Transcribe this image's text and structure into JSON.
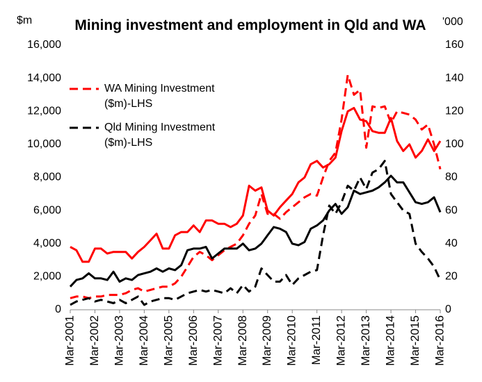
{
  "chart_data": {
    "type": "line",
    "title": "Mining investment and employment in Qld and WA",
    "ylabel": "$m",
    "y2label": "'000",
    "categories": [
      "Mar-2001",
      null,
      null,
      null,
      "Mar-2002",
      null,
      null,
      null,
      "Mar-2003",
      null,
      null,
      null,
      "Mar-2004",
      null,
      null,
      null,
      "Mar-2005",
      null,
      null,
      null,
      "Mar-2006",
      null,
      null,
      null,
      "Mar-2007",
      null,
      null,
      null,
      "Mar-2008",
      null,
      null,
      null,
      "Mar-2009",
      null,
      null,
      null,
      "Mar-2010",
      null,
      null,
      null,
      "Mar-2011",
      null,
      null,
      null,
      "Mar-2012",
      null,
      null,
      null,
      "Mar-2013",
      null,
      null,
      null,
      "Mar-2014",
      null,
      null,
      null,
      "Mar-2015",
      null,
      null,
      null,
      "Mar-2016"
    ],
    "series": [
      {
        "name": "WA Mining Investment ($m)-LHS",
        "color": "#ff0000",
        "dashed": true,
        "values": [
          700,
          800,
          800,
          700,
          800,
          800,
          900,
          900,
          900,
          1000,
          1200,
          1300,
          1100,
          1200,
          1300,
          1400,
          1400,
          1600,
          2000,
          2600,
          3200,
          3500,
          3300,
          3000,
          3300,
          3600,
          3800,
          4000,
          4500,
          5200,
          5700,
          7000,
          5800,
          5800,
          5500,
          5900,
          6200,
          6500,
          6800,
          7000,
          6900,
          8000,
          9000,
          9500,
          11500,
          14200,
          13000,
          13300,
          9800,
          12300,
          12200,
          12300,
          11300,
          12000,
          11900,
          11800,
          11500,
          10900,
          11200,
          10000,
          8500
        ]
      },
      {
        "name": "Qld Mining Investment ($m)-LHS",
        "color": "#000000",
        "dashed": true,
        "values": [
          300,
          500,
          600,
          700,
          500,
          600,
          500,
          400,
          600,
          400,
          600,
          800,
          300,
          500,
          600,
          700,
          700,
          600,
          800,
          1000,
          1100,
          1200,
          1100,
          1200,
          1100,
          1000,
          1300,
          1000,
          1500,
          1100,
          1400,
          2500,
          2100,
          1700,
          1700,
          2100,
          1500,
          1900,
          2100,
          2300,
          2400,
          4500,
          6300,
          5800,
          6500,
          7500,
          7200,
          8000,
          7300,
          8300,
          8500,
          9000,
          7000,
          6500,
          6000,
          5800,
          4000,
          3500,
          3100,
          2600,
          1800
        ]
      },
      {
        "color": "#ff0000",
        "dashed": false,
        "axis": "y2",
        "values": [
          38,
          36,
          29,
          29,
          37,
          37,
          34,
          35,
          35,
          35,
          31,
          35,
          38,
          42,
          46,
          37,
          37,
          45,
          47,
          47,
          51,
          47,
          54,
          54,
          52,
          52,
          50,
          52,
          57,
          75,
          72,
          74,
          60,
          57,
          62,
          66,
          70,
          77,
          80,
          88,
          90,
          86,
          88,
          92,
          108,
          120,
          122,
          115,
          114,
          108,
          107,
          107,
          116,
          102,
          96,
          100,
          92,
          96,
          103,
          96,
          102
        ]
      },
      {
        "color": "#000000",
        "dashed": false,
        "axis": "y2",
        "values": [
          14,
          18,
          19,
          22,
          19,
          19,
          18,
          23,
          17,
          19,
          18,
          21,
          22,
          23,
          25,
          23,
          25,
          24,
          27,
          36,
          37,
          37,
          38,
          31,
          34,
          37,
          37,
          37,
          40,
          36,
          37,
          40,
          45,
          50,
          49,
          47,
          40,
          39,
          41,
          49,
          51,
          54,
          60,
          64,
          58,
          62,
          72,
          70,
          71,
          72,
          74,
          77,
          81,
          77,
          77,
          71,
          65,
          64,
          65,
          68,
          59
        ]
      }
    ],
    "ylim": [
      0,
      16000
    ],
    "yticks": [
      0,
      {
        "value": 2000,
        "label": "2,000"
      },
      {
        "value": 4000,
        "label": "4,000"
      },
      {
        "value": 6000,
        "label": "6,000"
      },
      {
        "value": 8000,
        "label": "8,000"
      },
      {
        "value": 10000,
        "label": "10,000"
      },
      {
        "value": 12000,
        "label": "12,000"
      },
      {
        "value": 14000,
        "label": "14,000"
      },
      {
        "value": 16000,
        "label": "16,000"
      }
    ],
    "y2lim": [
      0,
      160
    ],
    "y2ticks": [
      0,
      20,
      40,
      60,
      80,
      100,
      120,
      140,
      160
    ],
    "legend": "upper left",
    "grid": false
  }
}
